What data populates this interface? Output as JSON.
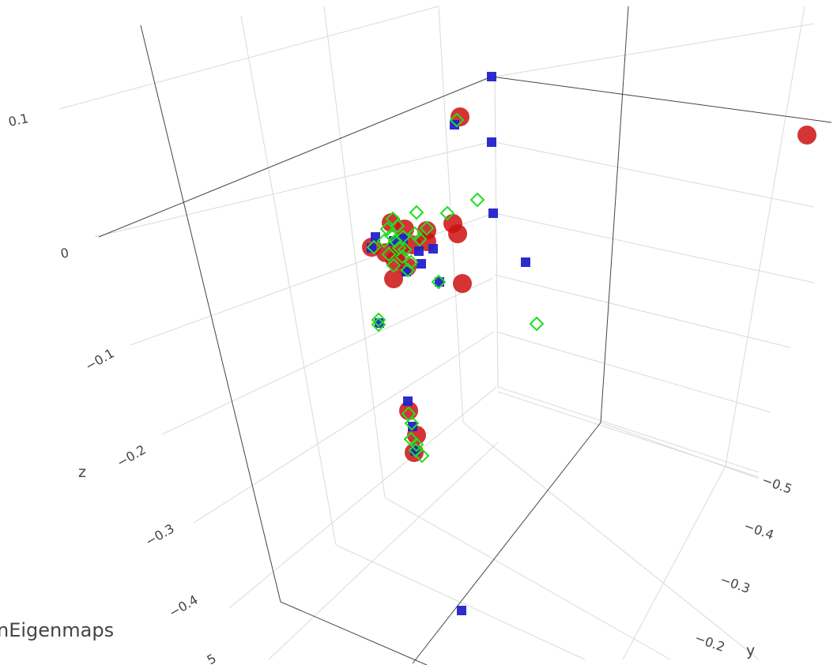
{
  "chart_data": {
    "type": "scatter3d",
    "axes": {
      "z": {
        "title": "z",
        "ticks": [
          "0.1",
          "0",
          "−0.1",
          "−0.2",
          "−0.3",
          "−0.4",
          "5"
        ]
      },
      "y": {
        "title": "y",
        "ticks": [
          "−0.5",
          "−0.4",
          "−0.3",
          "−0.2"
        ]
      }
    },
    "legend_fragment": "nEigenmaps",
    "colors": {
      "red": "#cc1111",
      "blue": "#2222cc",
      "green": "#22dd22"
    },
    "series": [
      {
        "marker": "circle",
        "color": "#cc1111",
        "points": [
          [
            582,
            148
          ],
          [
            1021,
            171
          ],
          [
            495,
            282
          ],
          [
            512,
            290
          ],
          [
            540,
            292
          ],
          [
            573,
            283
          ],
          [
            579,
            296
          ],
          [
            540,
            306
          ],
          [
            522,
            310
          ],
          [
            506,
            316
          ],
          [
            470,
            313
          ],
          [
            488,
            320
          ],
          [
            500,
            330
          ],
          [
            515,
            338
          ],
          [
            498,
            353
          ],
          [
            585,
            359
          ],
          [
            517,
            520
          ],
          [
            527,
            551
          ],
          [
            524,
            573
          ]
        ]
      },
      {
        "marker": "square",
        "color": "#2222cc",
        "points": [
          [
            622,
            97
          ],
          [
            575,
            158
          ],
          [
            622,
            180
          ],
          [
            624,
            270
          ],
          [
            475,
            300
          ],
          [
            498,
            305
          ],
          [
            530,
            318
          ],
          [
            548,
            315
          ],
          [
            533,
            334
          ],
          [
            665,
            332
          ],
          [
            514,
            344
          ],
          [
            556,
            357
          ],
          [
            480,
            409
          ],
          [
            516,
            508
          ],
          [
            522,
            540
          ],
          [
            525,
            571
          ],
          [
            584,
            773
          ],
          [
            470,
            314
          ],
          [
            510,
            302
          ]
        ]
      },
      {
        "marker": "diamond",
        "color": "#22dd22",
        "points": [
          [
            578,
            152
          ],
          [
            604,
            253
          ],
          [
            527,
            269
          ],
          [
            566,
            270
          ],
          [
            497,
            277
          ],
          [
            503,
            286
          ],
          [
            490,
            290
          ],
          [
            510,
            300
          ],
          [
            500,
            305
          ],
          [
            525,
            296
          ],
          [
            540,
            289
          ],
          [
            531,
            303
          ],
          [
            505,
            314
          ],
          [
            492,
            322
          ],
          [
            509,
            325
          ],
          [
            520,
            332
          ],
          [
            498,
            336
          ],
          [
            516,
            342
          ],
          [
            555,
            357
          ],
          [
            473,
            313
          ],
          [
            479,
            405
          ],
          [
            479,
            411
          ],
          [
            679,
            410
          ],
          [
            517,
            524
          ],
          [
            521,
            536
          ],
          [
            520,
            556
          ],
          [
            527,
            563
          ],
          [
            534,
            577
          ],
          [
            526,
            570
          ],
          [
            495,
            298
          ],
          [
            486,
            305
          ],
          [
            512,
            316
          ]
        ]
      }
    ]
  }
}
